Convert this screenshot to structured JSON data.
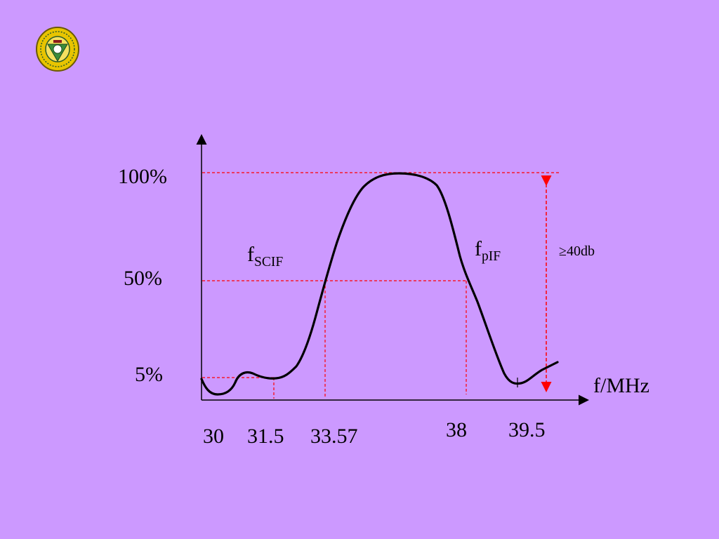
{
  "colors": {
    "background": "#cc99ff",
    "curve": "#000000",
    "guide": "#ff0000",
    "axis": "#000000"
  },
  "logo": {
    "icon": "university-seal-icon"
  },
  "diagram": {
    "y_ticks": [
      "100%",
      "50%",
      "5%"
    ],
    "x_ticks": [
      "30",
      "31.5",
      "33.57",
      "38",
      "39.5"
    ],
    "x_axis_label": "f/MHz",
    "scif_label": {
      "main": "f",
      "sub": "SCIF"
    },
    "pif_label": {
      "main": "f",
      "sub": "pIF"
    },
    "attenuation_label": "≥40db"
  }
}
